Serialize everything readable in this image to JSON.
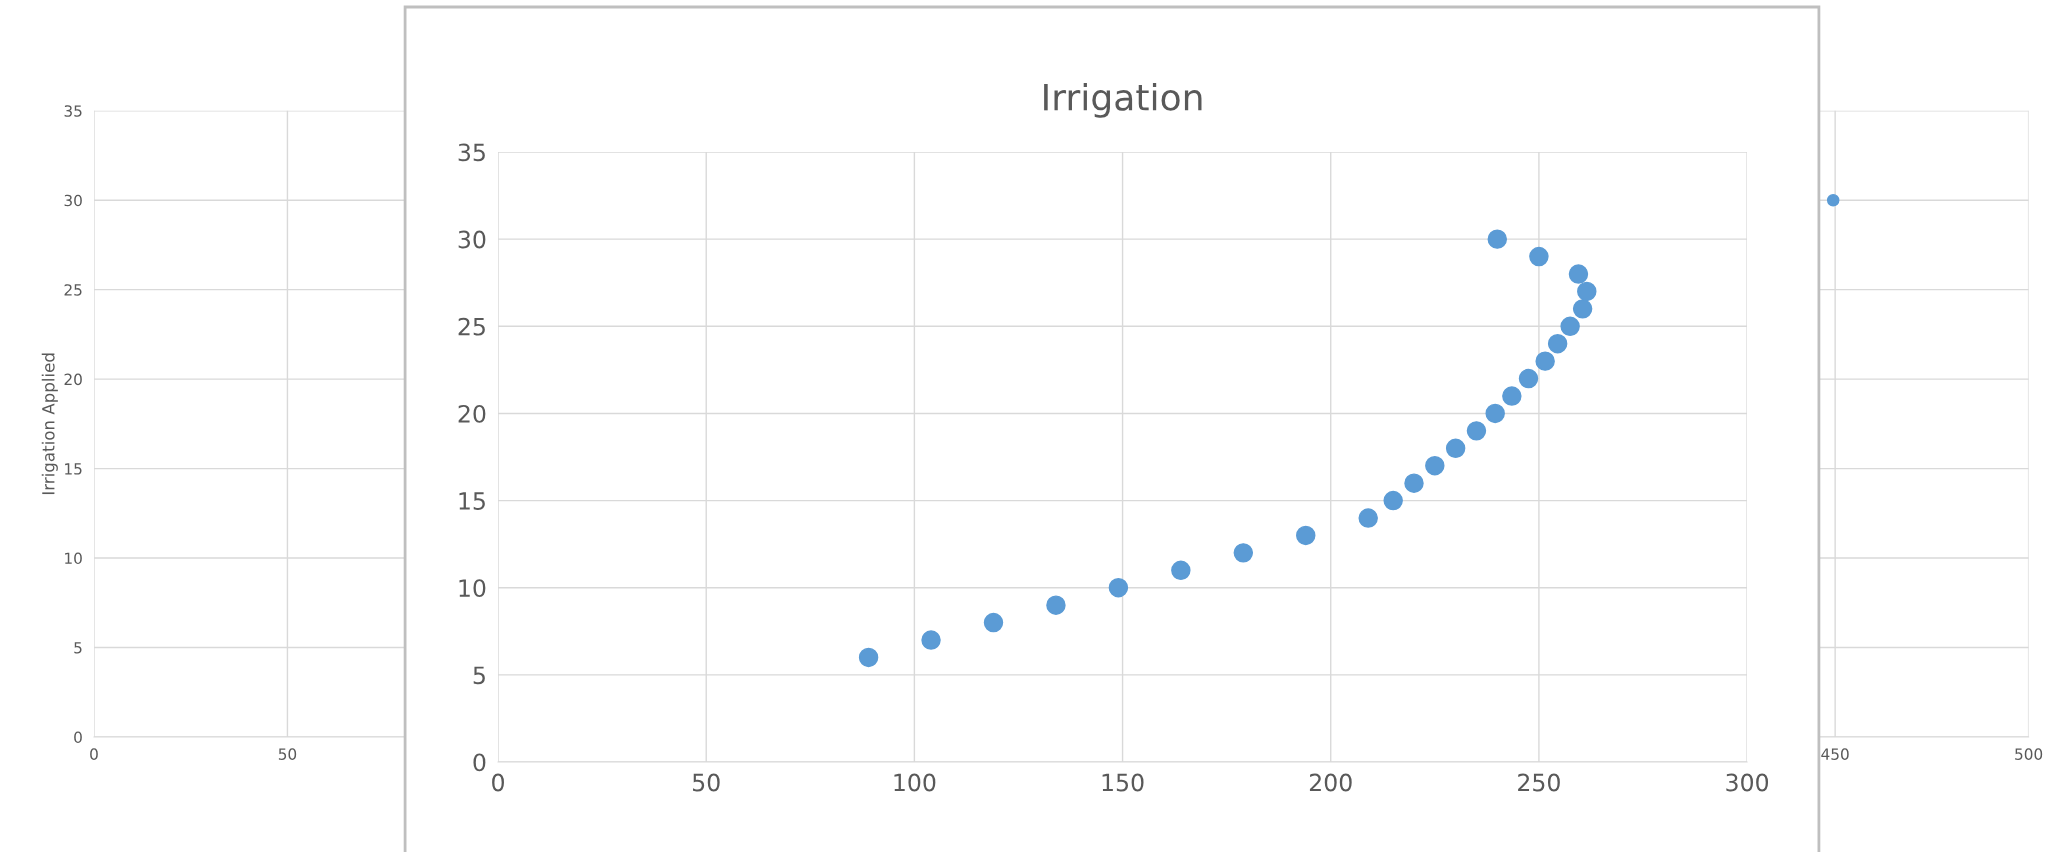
{
  "chart_data": [
    {
      "type": "scatter",
      "title": "Irrigation",
      "marker": "circle",
      "grid": true,
      "series": [
        {
          "color": "#5b9bd5",
          "x": [
            89,
            104,
            119,
            134,
            149,
            164,
            179,
            194,
            209,
            215,
            220,
            225,
            230,
            235,
            239.5,
            243.5,
            247.5,
            251.5,
            254.5,
            257.5,
            260.5,
            261.5,
            259.5,
            250,
            240
          ],
          "values": [
            6,
            7,
            8,
            9,
            10,
            11,
            12,
            13,
            14,
            15,
            16,
            17,
            18,
            19,
            20,
            21,
            22,
            23,
            24,
            25,
            26,
            27,
            28,
            29,
            30
          ]
        }
      ],
      "xlim": [
        0,
        300
      ],
      "xticks": [
        0,
        50,
        100,
        150,
        200,
        250,
        300
      ],
      "ylim": [
        0,
        35
      ],
      "yticks": [
        0,
        5,
        10,
        15,
        20,
        25,
        30,
        35
      ]
    },
    {
      "type": "line",
      "ylabel": "Irrigation Applied",
      "marker": "circle",
      "grid": true,
      "series": [
        {
          "color": "#5b9bd5",
          "x": [
            449.5
          ],
          "values": [
            30
          ]
        }
      ],
      "xlim": [
        0,
        500
      ],
      "xticks": [
        0,
        50,
        450,
        500
      ],
      "ylim": [
        0,
        35
      ],
      "yticks": [
        0,
        5,
        10,
        15,
        20,
        25,
        30,
        35
      ]
    }
  ]
}
